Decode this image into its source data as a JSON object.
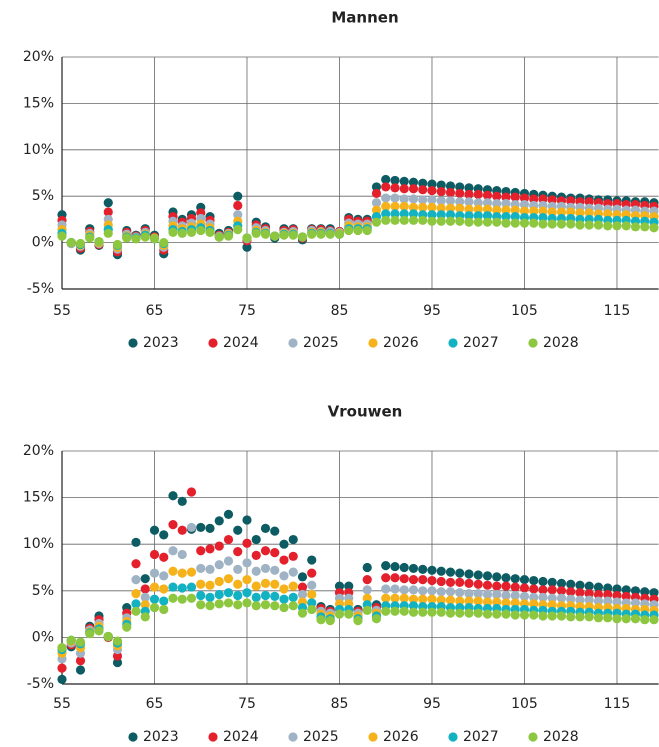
{
  "chart_data": [
    {
      "type": "scatter",
      "title": "Mannen",
      "x": [
        55,
        56,
        57,
        58,
        59,
        60,
        61,
        62,
        63,
        64,
        65,
        66,
        67,
        68,
        69,
        70,
        71,
        72,
        73,
        74,
        75,
        76,
        77,
        78,
        79,
        80,
        81,
        82,
        83,
        84,
        85,
        86,
        87,
        88,
        89,
        90,
        91,
        92,
        93,
        94,
        95,
        96,
        97,
        98,
        99,
        100,
        101,
        102,
        103,
        104,
        105,
        106,
        107,
        108,
        109,
        110,
        111,
        112,
        113,
        114,
        115,
        116,
        117,
        118,
        119
      ],
      "series": [
        {
          "name": "2023",
          "color": "#0d5c63",
          "values": [
            3.0,
            0.0,
            -0.8,
            1.5,
            -0.3,
            4.3,
            -1.3,
            1.3,
            0.8,
            1.5,
            0.8,
            -1.2,
            3.3,
            2.5,
            3.0,
            3.8,
            2.8,
            1.0,
            1.3,
            5.0,
            -0.5,
            2.2,
            1.7,
            0.5,
            1.5,
            1.5,
            0.3,
            1.5,
            1.5,
            1.5,
            1.2,
            2.7,
            2.5,
            2.5,
            6.0,
            6.8,
            6.7,
            6.6,
            6.5,
            6.4,
            6.3,
            6.2,
            6.1,
            6.0,
            5.9,
            5.8,
            5.7,
            5.6,
            5.5,
            5.4,
            5.3,
            5.2,
            5.1,
            5.0,
            4.9,
            4.8,
            4.8,
            4.7,
            4.6,
            4.6,
            4.5,
            4.5,
            4.4,
            4.4,
            4.3
          ]
        },
        {
          "name": "2024",
          "color": "#e3202b",
          "values": [
            2.4,
            -0.1,
            -0.6,
            1.2,
            -0.2,
            3.3,
            -1.0,
            1.1,
            0.7,
            1.3,
            0.6,
            -0.8,
            2.8,
            2.2,
            2.6,
            3.2,
            2.4,
            0.8,
            1.1,
            4.0,
            0.2,
            1.9,
            1.5,
            0.7,
            1.3,
            1.4,
            0.5,
            1.4,
            1.4,
            1.3,
            1.2,
            2.5,
            2.3,
            2.3,
            5.3,
            6.0,
            5.9,
            5.8,
            5.8,
            5.7,
            5.6,
            5.5,
            5.4,
            5.3,
            5.2,
            5.2,
            5.1,
            5.0,
            4.9,
            4.9,
            4.8,
            4.7,
            4.7,
            4.6,
            4.5,
            4.5,
            4.4,
            4.4,
            4.3,
            4.2,
            4.2,
            4.1,
            4.1,
            4.0,
            3.9
          ]
        },
        {
          "name": "2025",
          "color": "#9fb3c4",
          "values": [
            1.9,
            -0.1,
            -0.4,
            1.0,
            -0.1,
            2.5,
            -0.7,
            0.9,
            0.6,
            1.1,
            0.5,
            -0.5,
            2.3,
            1.8,
            2.1,
            2.6,
            2.0,
            0.7,
            1.0,
            3.0,
            0.4,
            1.6,
            1.3,
            0.7,
            1.1,
            1.2,
            0.6,
            1.3,
            1.2,
            1.2,
            1.1,
            2.1,
            2.0,
            2.0,
            4.3,
            4.8,
            4.8,
            4.7,
            4.7,
            4.6,
            4.6,
            4.5,
            4.5,
            4.4,
            4.4,
            4.3,
            4.3,
            4.2,
            4.2,
            4.1,
            4.1,
            4.0,
            4.0,
            3.9,
            3.9,
            3.8,
            3.8,
            3.7,
            3.7,
            3.6,
            3.6,
            3.5,
            3.5,
            3.4,
            3.4
          ]
        },
        {
          "name": "2026",
          "color": "#f6b21a",
          "values": [
            1.4,
            0.0,
            -0.3,
            0.8,
            0.0,
            1.9,
            -0.5,
            0.7,
            0.5,
            0.9,
            0.5,
            -0.3,
            1.8,
            1.5,
            1.7,
            2.0,
            1.6,
            0.6,
            0.9,
            2.3,
            0.5,
            1.3,
            1.1,
            0.7,
            1.0,
            1.0,
            0.6,
            1.1,
            1.1,
            1.0,
            1.0,
            1.8,
            1.7,
            1.7,
            3.5,
            3.9,
            3.9,
            3.9,
            3.8,
            3.8,
            3.8,
            3.7,
            3.7,
            3.7,
            3.6,
            3.6,
            3.6,
            3.5,
            3.5,
            3.5,
            3.4,
            3.4,
            3.4,
            3.3,
            3.3,
            3.3,
            3.2,
            3.2,
            3.1,
            3.1,
            3.0,
            3.0,
            2.9,
            2.9,
            2.8
          ]
        },
        {
          "name": "2027",
          "color": "#12b2c2",
          "values": [
            1.0,
            0.0,
            -0.2,
            0.6,
            0.1,
            1.4,
            -0.3,
            0.6,
            0.5,
            0.8,
            0.4,
            -0.1,
            1.4,
            1.2,
            1.4,
            1.6,
            1.3,
            0.6,
            0.8,
            1.8,
            0.5,
            1.1,
            1.0,
            0.7,
            0.9,
            0.9,
            0.6,
            1.0,
            1.0,
            1.0,
            0.9,
            1.5,
            1.5,
            1.5,
            2.8,
            3.1,
            3.1,
            3.1,
            3.1,
            3.0,
            3.0,
            3.0,
            3.0,
            2.9,
            2.9,
            2.9,
            2.9,
            2.8,
            2.8,
            2.8,
            2.7,
            2.7,
            2.7,
            2.6,
            2.6,
            2.6,
            2.5,
            2.5,
            2.5,
            2.4,
            2.4,
            2.4,
            2.3,
            2.3,
            2.2
          ]
        },
        {
          "name": "2028",
          "color": "#8dc63f",
          "values": [
            0.7,
            0.0,
            -0.1,
            0.5,
            0.1,
            1.0,
            -0.2,
            0.5,
            0.4,
            0.6,
            0.4,
            0.0,
            1.1,
            1.0,
            1.1,
            1.3,
            1.1,
            0.6,
            0.7,
            1.4,
            0.5,
            1.0,
            0.9,
            0.7,
            0.8,
            0.8,
            0.6,
            0.9,
            0.9,
            0.9,
            0.9,
            1.3,
            1.3,
            1.3,
            2.2,
            2.4,
            2.4,
            2.4,
            2.4,
            2.4,
            2.3,
            2.3,
            2.3,
            2.3,
            2.2,
            2.2,
            2.2,
            2.2,
            2.1,
            2.1,
            2.1,
            2.1,
            2.0,
            2.0,
            2.0,
            2.0,
            1.9,
            1.9,
            1.9,
            1.8,
            1.8,
            1.8,
            1.7,
            1.7,
            1.6
          ]
        }
      ],
      "xlim": [
        55,
        119.5
      ],
      "ylim": [
        -5,
        20
      ],
      "xticks": [
        55,
        65,
        75,
        85,
        95,
        105,
        115
      ],
      "yticks": [
        {
          "value": -5,
          "label": "-5%"
        },
        {
          "value": 0,
          "label": "0%"
        },
        {
          "value": 5,
          "label": "5%"
        },
        {
          "value": 10,
          "label": "10%"
        },
        {
          "value": 15,
          "label": "15%"
        },
        {
          "value": 20,
          "label": "20%"
        }
      ],
      "grid": true
    },
    {
      "type": "scatter",
      "title": "Vrouwen",
      "x": [
        55,
        56,
        57,
        58,
        59,
        60,
        61,
        62,
        63,
        64,
        65,
        66,
        67,
        68,
        69,
        70,
        71,
        72,
        73,
        74,
        75,
        76,
        77,
        78,
        79,
        80,
        81,
        82,
        83,
        84,
        85,
        86,
        87,
        88,
        89,
        90,
        91,
        92,
        93,
        94,
        95,
        96,
        97,
        98,
        99,
        100,
        101,
        102,
        103,
        104,
        105,
        106,
        107,
        108,
        109,
        110,
        111,
        112,
        113,
        114,
        115,
        116,
        117,
        118,
        119
      ],
      "series": [
        {
          "name": "2023",
          "color": "#0d5c63",
          "values": [
            -4.5,
            -1.0,
            -3.5,
            1.2,
            2.3,
            0.0,
            -2.7,
            3.2,
            10.2,
            6.3,
            11.5,
            11.0,
            15.2,
            14.6,
            11.6,
            11.8,
            11.7,
            12.5,
            13.2,
            11.5,
            12.6,
            10.5,
            11.7,
            11.4,
            10.0,
            10.5,
            6.5,
            8.3,
            3.3,
            3.0,
            5.5,
            5.5,
            3.0,
            7.5,
            3.5,
            7.7,
            7.6,
            7.5,
            7.4,
            7.3,
            7.2,
            7.1,
            7.0,
            6.9,
            6.8,
            6.7,
            6.6,
            6.5,
            6.4,
            6.3,
            6.2,
            6.1,
            6.0,
            5.9,
            5.8,
            5.7,
            5.6,
            5.5,
            5.4,
            5.3,
            5.2,
            5.1,
            5.0,
            4.9,
            4.8
          ]
        },
        {
          "name": "2024",
          "color": "#e3202b",
          "values": [
            -3.3,
            -0.8,
            -2.5,
            1.0,
            1.9,
            0.0,
            -2.0,
            2.6,
            7.9,
            5.2,
            8.9,
            8.6,
            12.1,
            11.5,
            15.6,
            9.3,
            9.5,
            9.8,
            10.5,
            9.2,
            10.1,
            8.8,
            9.3,
            9.1,
            8.3,
            8.7,
            5.4,
            6.9,
            3.1,
            2.8,
            4.8,
            4.8,
            2.8,
            6.2,
            3.2,
            6.4,
            6.4,
            6.3,
            6.2,
            6.2,
            6.1,
            6.0,
            5.9,
            5.9,
            5.8,
            5.7,
            5.6,
            5.5,
            5.5,
            5.4,
            5.3,
            5.2,
            5.1,
            5.1,
            5.0,
            4.9,
            4.8,
            4.7,
            4.6,
            4.6,
            4.5,
            4.4,
            4.3,
            4.2,
            4.1
          ]
        },
        {
          "name": "2025",
          "color": "#9fb3c4",
          "values": [
            -2.3,
            -0.6,
            -1.7,
            0.8,
            1.5,
            0.1,
            -1.3,
            2.1,
            6.2,
            4.3,
            6.9,
            6.6,
            9.3,
            8.9,
            11.8,
            7.4,
            7.3,
            7.8,
            8.2,
            7.3,
            8.0,
            7.1,
            7.4,
            7.2,
            6.6,
            7.0,
            4.6,
            5.6,
            2.8,
            2.6,
            4.2,
            4.2,
            2.6,
            5.1,
            2.9,
            5.2,
            5.2,
            5.1,
            5.1,
            5.0,
            5.0,
            4.9,
            4.9,
            4.8,
            4.7,
            4.7,
            4.6,
            4.6,
            4.5,
            4.5,
            4.4,
            4.3,
            4.3,
            4.2,
            4.2,
            4.1,
            4.0,
            4.0,
            3.9,
            3.9,
            3.8,
            3.7,
            3.7,
            3.6,
            3.5
          ]
        },
        {
          "name": "2026",
          "color": "#f6b21a",
          "values": [
            -1.7,
            -0.4,
            -1.1,
            0.6,
            1.2,
            0.1,
            -0.9,
            1.7,
            4.7,
            3.5,
            5.4,
            5.2,
            7.1,
            6.9,
            7.0,
            5.7,
            5.6,
            6.0,
            6.3,
            5.7,
            6.2,
            5.5,
            5.8,
            5.7,
            5.2,
            5.5,
            3.8,
            4.6,
            2.5,
            2.3,
            3.6,
            3.6,
            2.3,
            4.2,
            2.6,
            4.2,
            4.2,
            4.2,
            4.1,
            4.1,
            4.1,
            4.0,
            4.0,
            3.9,
            3.9,
            3.9,
            3.8,
            3.8,
            3.7,
            3.7,
            3.6,
            3.6,
            3.5,
            3.5,
            3.4,
            3.4,
            3.3,
            3.3,
            3.2,
            3.2,
            3.1,
            3.1,
            3.0,
            3.0,
            2.9
          ]
        },
        {
          "name": "2027",
          "color": "#12b2c2",
          "values": [
            -1.3,
            -0.3,
            -0.7,
            0.5,
            0.9,
            0.1,
            -0.6,
            1.4,
            3.6,
            2.8,
            4.1,
            3.9,
            5.4,
            5.3,
            5.4,
            4.5,
            4.3,
            4.6,
            4.8,
            4.5,
            4.8,
            4.3,
            4.5,
            4.4,
            4.1,
            4.3,
            3.2,
            3.7,
            2.2,
            2.0,
            3.0,
            3.0,
            2.0,
            3.5,
            2.3,
            3.4,
            3.4,
            3.4,
            3.4,
            3.3,
            3.3,
            3.3,
            3.2,
            3.2,
            3.2,
            3.1,
            3.1,
            3.1,
            3.0,
            3.0,
            3.0,
            2.9,
            2.9,
            2.8,
            2.8,
            2.8,
            2.7,
            2.7,
            2.6,
            2.6,
            2.6,
            2.5,
            2.5,
            2.4,
            2.4
          ]
        },
        {
          "name": "2028",
          "color": "#8dc63f",
          "values": [
            -1.1,
            -0.3,
            -0.5,
            0.4,
            0.7,
            0.1,
            -0.4,
            1.1,
            2.8,
            2.2,
            3.2,
            3.0,
            4.2,
            4.1,
            4.2,
            3.5,
            3.4,
            3.6,
            3.7,
            3.5,
            3.7,
            3.4,
            3.5,
            3.4,
            3.2,
            3.4,
            2.6,
            3.0,
            1.9,
            1.8,
            2.5,
            2.5,
            1.8,
            2.9,
            2.0,
            2.8,
            2.8,
            2.8,
            2.7,
            2.7,
            2.7,
            2.7,
            2.6,
            2.6,
            2.6,
            2.6,
            2.5,
            2.5,
            2.5,
            2.4,
            2.4,
            2.4,
            2.3,
            2.3,
            2.3,
            2.2,
            2.2,
            2.2,
            2.1,
            2.1,
            2.0,
            2.0,
            2.0,
            1.9,
            1.9
          ]
        }
      ],
      "xlim": [
        55,
        119.5
      ],
      "ylim": [
        -5,
        20
      ],
      "xticks": [
        55,
        65,
        75,
        85,
        95,
        105,
        115
      ],
      "yticks": [
        {
          "value": -5,
          "label": "-5%"
        },
        {
          "value": 0,
          "label": "0%"
        },
        {
          "value": 5,
          "label": "5%"
        },
        {
          "value": 10,
          "label": "10%"
        },
        {
          "value": 15,
          "label": "15%"
        },
        {
          "value": 20,
          "label": "20%"
        }
      ],
      "grid": true
    }
  ]
}
